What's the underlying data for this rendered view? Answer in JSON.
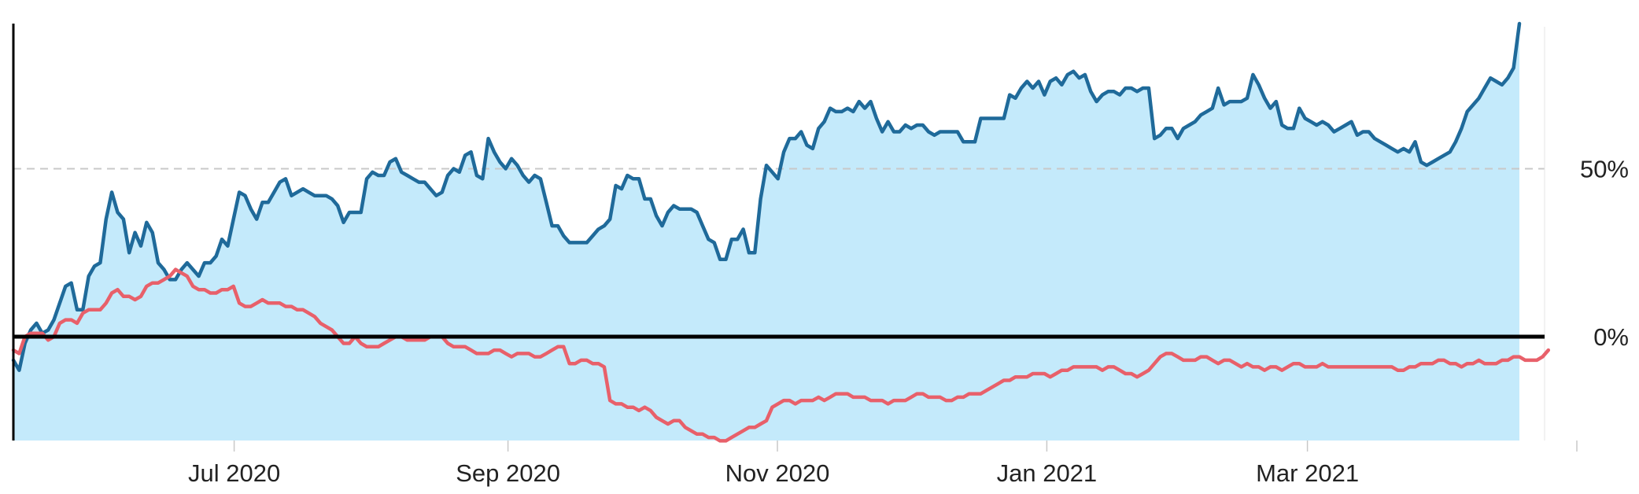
{
  "chart_data": {
    "type": "line",
    "title": "",
    "xlabel": "",
    "ylabel": "",
    "x_ticks": [
      "Jul 2020",
      "Sep 2020",
      "Nov 2020",
      "Jan 2021",
      "Mar 2021",
      ""
    ],
    "y_ticks": [
      {
        "value": 50,
        "label": "50%"
      },
      {
        "value": 0,
        "label": "0%"
      }
    ],
    "ylim": [
      -31,
      93
    ],
    "grid": false,
    "legend": "none",
    "colors": {
      "fill": "#c4eafb",
      "blue": "#1f6a9a",
      "red": "#e8606a",
      "zero_line": "#000000",
      "ref_line": "#c8c8c8"
    },
    "series": [
      {
        "values": [
          -7,
          -10,
          -2,
          2,
          4,
          1,
          2,
          5,
          10,
          15,
          16,
          8,
          8,
          18,
          21,
          22,
          35,
          43,
          37,
          35,
          25,
          31,
          27,
          34,
          31,
          22,
          20,
          17,
          17,
          20,
          22,
          20,
          18,
          22,
          22,
          24,
          29,
          27,
          35,
          43,
          42,
          38,
          35,
          40,
          40,
          43,
          46,
          47,
          42,
          43,
          44,
          43,
          42,
          42,
          42,
          41,
          39,
          34,
          37,
          37,
          37,
          47,
          49,
          48,
          48,
          52,
          53,
          49,
          48,
          47,
          46,
          46,
          44,
          42,
          43,
          48,
          50,
          49,
          54,
          55,
          48,
          47,
          59,
          55,
          52,
          50,
          53,
          51,
          48,
          46,
          48,
          47,
          40,
          33,
          33,
          30,
          28,
          28,
          28,
          28,
          30,
          32,
          33,
          35,
          45,
          44,
          48,
          47,
          47,
          41,
          41,
          36,
          33,
          37,
          39,
          38,
          38,
          38,
          37,
          33,
          29,
          28,
          23,
          23,
          29,
          29,
          32,
          25,
          25,
          41,
          51,
          49,
          47,
          55,
          59,
          59,
          61,
          57,
          56,
          62,
          64,
          68,
          67,
          67,
          68,
          67,
          70,
          68,
          70,
          65,
          61,
          64,
          61,
          61,
          63,
          62,
          63,
          63,
          61,
          60,
          61,
          61,
          61,
          61,
          58,
          58,
          58,
          65,
          65,
          65,
          65,
          65,
          72,
          71,
          74,
          76,
          74,
          76,
          72,
          76,
          77,
          75,
          78,
          79,
          77,
          78,
          73,
          70,
          72,
          73,
          73,
          72,
          74,
          74,
          73,
          74,
          74,
          59,
          60,
          62,
          62,
          59,
          62,
          63,
          64,
          66,
          67,
          68,
          74,
          69,
          70,
          70,
          70,
          71,
          78,
          75,
          71,
          68,
          70,
          63,
          62,
          62,
          68,
          65,
          64,
          63,
          64,
          63,
          61,
          62,
          63,
          64,
          60,
          61,
          61,
          59,
          58,
          57,
          56,
          55,
          56,
          55,
          58,
          52,
          51,
          52,
          53,
          54,
          55,
          58,
          62,
          67,
          69,
          71,
          74,
          77,
          76,
          75,
          77,
          80,
          95
        ]
      },
      {
        "values": [
          -4,
          -5,
          0,
          1,
          1,
          1,
          -1,
          0,
          4,
          5,
          5,
          4,
          7,
          8,
          8,
          8,
          10,
          13,
          14,
          12,
          12,
          11,
          12,
          15,
          16,
          16,
          17,
          18,
          20,
          19,
          18,
          15,
          14,
          14,
          13,
          13,
          14,
          14,
          15,
          10,
          9,
          9,
          10,
          11,
          10,
          10,
          10,
          9,
          9,
          8,
          8,
          7,
          6,
          4,
          3,
          2,
          0,
          -2,
          -2,
          0,
          -2,
          -3,
          -3,
          -3,
          -2,
          -1,
          0,
          0,
          -1,
          -1,
          -1,
          -1,
          0,
          0,
          0,
          -2,
          -3,
          -3,
          -3,
          -4,
          -5,
          -5,
          -5,
          -4,
          -4,
          -5,
          -6,
          -5,
          -5,
          -5,
          -6,
          -6,
          -5,
          -4,
          -3,
          -3,
          -8,
          -8,
          -7,
          -7,
          -8,
          -8,
          -9,
          -19,
          -20,
          -20,
          -21,
          -21,
          -22,
          -21,
          -22,
          -24,
          -25,
          -26,
          -25,
          -25,
          -27,
          -28,
          -29,
          -29,
          -30,
          -30,
          -31,
          -31,
          -30,
          -29,
          -28,
          -27,
          -27,
          -26,
          -25,
          -21,
          -20,
          -19,
          -19,
          -20,
          -19,
          -19,
          -19,
          -18,
          -19,
          -18,
          -17,
          -17,
          -17,
          -18,
          -18,
          -18,
          -19,
          -19,
          -19,
          -20,
          -19,
          -19,
          -19,
          -18,
          -17,
          -17,
          -18,
          -18,
          -18,
          -19,
          -19,
          -18,
          -18,
          -17,
          -17,
          -17,
          -16,
          -15,
          -14,
          -13,
          -13,
          -12,
          -12,
          -12,
          -11,
          -11,
          -11,
          -12,
          -11,
          -10,
          -10,
          -9,
          -9,
          -9,
          -9,
          -9,
          -10,
          -9,
          -9,
          -10,
          -11,
          -11,
          -12,
          -11,
          -10,
          -8,
          -6,
          -5,
          -5,
          -6,
          -7,
          -7,
          -7,
          -6,
          -6,
          -7,
          -8,
          -7,
          -7,
          -8,
          -9,
          -8,
          -9,
          -9,
          -10,
          -9,
          -9,
          -10,
          -9,
          -8,
          -8,
          -9,
          -9,
          -9,
          -8,
          -9,
          -9,
          -9,
          -9,
          -9,
          -9,
          -9,
          -9,
          -9,
          -9,
          -9,
          -9,
          -10,
          -10,
          -9,
          -9,
          -8,
          -8,
          -8,
          -7,
          -7,
          -8,
          -8,
          -9,
          -8,
          -8,
          -7,
          -8,
          -8,
          -8,
          -7,
          -7,
          -6,
          -6,
          -7,
          -7,
          -7,
          -6,
          -4
        ]
      }
    ]
  }
}
